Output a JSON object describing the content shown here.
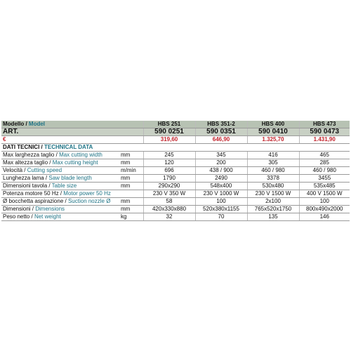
{
  "table": {
    "header": {
      "label_it": "Modello /",
      "label_en": "Model",
      "models": [
        "HBS 251",
        "HBS 351-2",
        "HBS 400",
        "HBS 473"
      ]
    },
    "art": {
      "label": "ART.",
      "codes": [
        "590 0251",
        "590 0351",
        "590 0410",
        "590 0473"
      ]
    },
    "price": {
      "label": "€",
      "prices": [
        "319,60",
        "646,90",
        "1.325,70",
        "1.431,90"
      ]
    },
    "section": {
      "label_it": "DATI TECNICI /",
      "label_en": "TECHNICAL DATA"
    },
    "rows": [
      {
        "it": "Max larghezza taglio /",
        "en": "Max cutting width",
        "unit": "mm",
        "values": [
          "245",
          "345",
          "416",
          "465"
        ]
      },
      {
        "it": "Max altezza taglio /",
        "en": "Max cutting height",
        "unit": "mm",
        "values": [
          "120",
          "200",
          "305",
          "285"
        ]
      },
      {
        "it": "Velocità /",
        "en": "Cutting speed",
        "unit": "m/min",
        "values": [
          "696",
          "438 / 900",
          "460 / 980",
          "460 / 980"
        ]
      },
      {
        "it": "Lunghezza lama /",
        "en": "Saw blade length",
        "unit": "mm",
        "values": [
          "1790",
          "2490",
          "3378",
          "3455"
        ]
      },
      {
        "it": "Dimensioni tavola /",
        "en": "Table size",
        "unit": "mm",
        "values": [
          "290x290",
          "548x400",
          "530x480",
          "535x485"
        ]
      },
      {
        "it": "Potenza motore 50 Hz /",
        "en": "Motor power 50 Hz",
        "unit": "",
        "values": [
          "230 V   350 W",
          "230 V  1000 W",
          "230 V  1500 W",
          "400 V  1500 W"
        ]
      },
      {
        "it": "Ø bocchetta aspirazione /",
        "en": "Suction nozzle Ø",
        "unit": "mm",
        "values": [
          "58",
          "100",
          "2x100",
          "100"
        ]
      },
      {
        "it": "Dimensioni /",
        "en": "Dimensions",
        "unit": "mm",
        "values": [
          "420x330x880",
          "520x380x1155",
          "765x520x1750",
          "800x490x2000"
        ]
      },
      {
        "it": "Peso netto /",
        "en": "Net weight",
        "unit": "kg",
        "values": [
          "32",
          "70",
          "135",
          "146"
        ]
      }
    ]
  }
}
